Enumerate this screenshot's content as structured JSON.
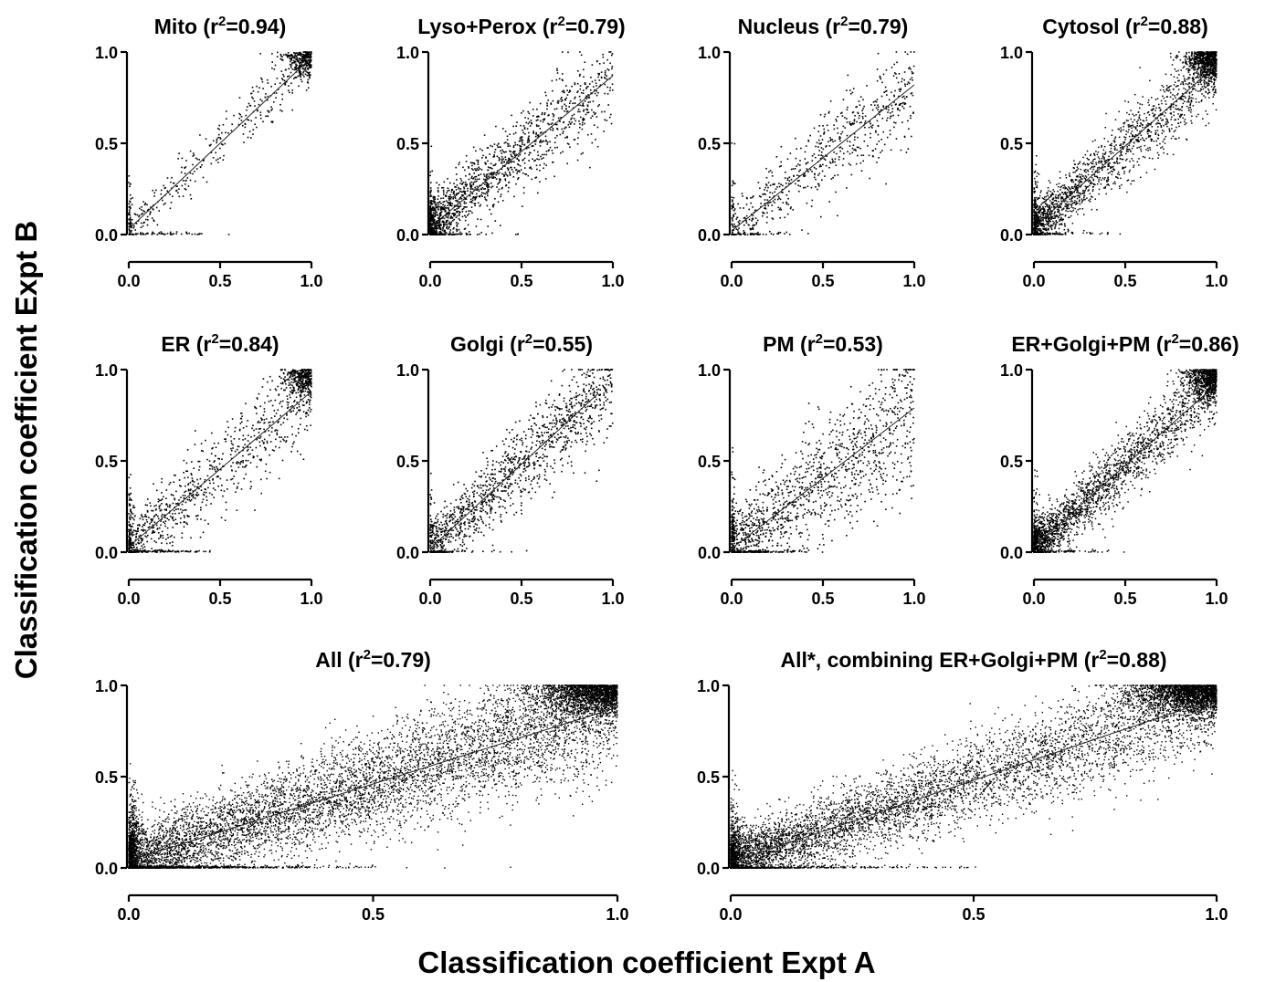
{
  "figure": {
    "x_axis_title": "Classification coefficient Expt A",
    "y_axis_title": "Classification coefficient Expt B"
  },
  "chart_data": [
    {
      "type": "scatter",
      "title_prefix": "Mito (r",
      "title_sup": "2",
      "title_suffix": "=0.94)",
      "r2": 0.94,
      "x_ticks": [
        "0.0",
        "0.5",
        "1.0"
      ],
      "y_ticks": [
        "0.0",
        "0.5",
        "1.0"
      ],
      "xlim": [
        0,
        1
      ],
      "ylim": [
        0,
        1
      ],
      "fit": {
        "x": [
          0.0,
          1.0
        ],
        "y": [
          0.03,
          0.97
        ]
      }
    },
    {
      "type": "scatter",
      "title_prefix": "Lyso+Perox (r",
      "title_sup": "2",
      "title_suffix": "=0.79)",
      "r2": 0.79,
      "x_ticks": [
        "0.0",
        "0.5",
        "1.0"
      ],
      "y_ticks": [
        "0.0",
        "0.5",
        "1.0"
      ],
      "xlim": [
        0,
        1
      ],
      "ylim": [
        0,
        1
      ],
      "fit": {
        "x": [
          0.0,
          1.0
        ],
        "y": [
          0.04,
          0.87
        ]
      }
    },
    {
      "type": "scatter",
      "title_prefix": "Nucleus (r",
      "title_sup": "2",
      "title_suffix": "=0.79)",
      "r2": 0.79,
      "x_ticks": [
        "0.0",
        "0.5",
        "1.0"
      ],
      "y_ticks": [
        "0.0",
        "0.5",
        "1.0"
      ],
      "xlim": [
        0,
        1
      ],
      "ylim": [
        0,
        1
      ],
      "fit": {
        "x": [
          0.0,
          1.0
        ],
        "y": [
          0.02,
          0.82
        ]
      }
    },
    {
      "type": "scatter",
      "title_prefix": "Cytosol (r",
      "title_sup": "2",
      "title_suffix": "=0.88)",
      "r2": 0.88,
      "x_ticks": [
        "0.0",
        "0.5",
        "1.0"
      ],
      "y_ticks": [
        "0.0",
        "0.5",
        "1.0"
      ],
      "xlim": [
        0,
        1
      ],
      "ylim": [
        0,
        1
      ],
      "fit": {
        "x": [
          0.0,
          1.0
        ],
        "y": [
          0.04,
          0.93
        ]
      }
    },
    {
      "type": "scatter",
      "title_prefix": "ER (r",
      "title_sup": "2",
      "title_suffix": "=0.84)",
      "r2": 0.84,
      "x_ticks": [
        "0.0",
        "0.5",
        "1.0"
      ],
      "y_ticks": [
        "0.0",
        "0.5",
        "1.0"
      ],
      "xlim": [
        0,
        1
      ],
      "ylim": [
        0,
        1
      ],
      "fit": {
        "x": [
          0.0,
          1.0
        ],
        "y": [
          0.03,
          0.88
        ]
      }
    },
    {
      "type": "scatter",
      "title_prefix": "Golgi (r",
      "title_sup": "2",
      "title_suffix": "=0.55)",
      "r2": 0.55,
      "x_ticks": [
        "0.0",
        "0.5",
        "1.0"
      ],
      "y_ticks": [
        "0.0",
        "0.5",
        "1.0"
      ],
      "xlim": [
        0,
        1
      ],
      "ylim": [
        0,
        1
      ],
      "fit": {
        "x": [
          0.0,
          0.92
        ],
        "y": [
          0.02,
          0.87
        ]
      }
    },
    {
      "type": "scatter",
      "title_prefix": "PM (r",
      "title_sup": "2",
      "title_suffix": "=0.53)",
      "r2": 0.53,
      "x_ticks": [
        "0.0",
        "0.5",
        "1.0"
      ],
      "y_ticks": [
        "0.0",
        "0.5",
        "1.0"
      ],
      "xlim": [
        0,
        1
      ],
      "ylim": [
        0,
        1
      ],
      "fit": {
        "x": [
          0.0,
          1.0
        ],
        "y": [
          0.02,
          0.79
        ]
      }
    },
    {
      "type": "scatter",
      "title_prefix": "ER+Golgi+PM (r",
      "title_sup": "2",
      "title_suffix": "=0.86)",
      "r2": 0.86,
      "x_ticks": [
        "0.0",
        "0.5",
        "1.0"
      ],
      "y_ticks": [
        "0.0",
        "0.5",
        "1.0"
      ],
      "xlim": [
        0,
        1
      ],
      "ylim": [
        0,
        1
      ],
      "fit": {
        "x": [
          0.0,
          1.0
        ],
        "y": [
          0.03,
          0.92
        ]
      }
    },
    {
      "type": "scatter",
      "title_prefix": "All (r",
      "title_sup": "2",
      "title_suffix": "=0.79)",
      "r2": 0.79,
      "x_ticks": [
        "0.0",
        "0.5",
        "1.0"
      ],
      "y_ticks": [
        "0.0",
        "0.5",
        "1.0"
      ],
      "xlim": [
        0,
        1
      ],
      "ylim": [
        0,
        1
      ],
      "fit": {
        "x": [
          0.0,
          1.0
        ],
        "y": [
          0.04,
          0.88
        ]
      }
    },
    {
      "type": "scatter",
      "title_prefix": "All*, combining ER+Golgi+PM (r",
      "title_sup": "2",
      "title_suffix": "=0.88)",
      "r2": 0.88,
      "x_ticks": [
        "0.0",
        "0.5",
        "1.0"
      ],
      "y_ticks": [
        "0.0",
        "0.5",
        "1.0"
      ],
      "xlim": [
        0,
        1
      ],
      "ylim": [
        0,
        1
      ],
      "fit": {
        "x": [
          0.0,
          1.0
        ],
        "y": [
          0.03,
          0.93
        ]
      }
    }
  ]
}
